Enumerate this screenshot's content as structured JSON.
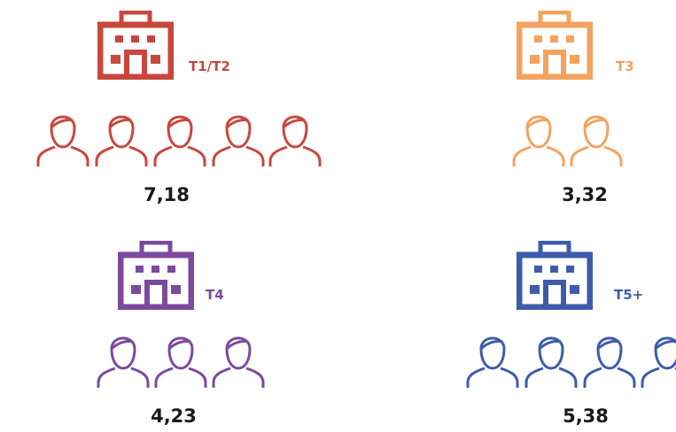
{
  "panels": [
    {
      "label": "T1/T2",
      "value": "7,18",
      "color": "#c8473d"
    },
    {
      "label": "T3",
      "value": "3,32",
      "color": "#f4a25e"
    },
    {
      "label": "T4",
      "value": "4,23",
      "color": "#7b4a9c"
    },
    {
      "label": "T5+",
      "value": "5,38",
      "color": "#3d5ca9"
    }
  ]
}
